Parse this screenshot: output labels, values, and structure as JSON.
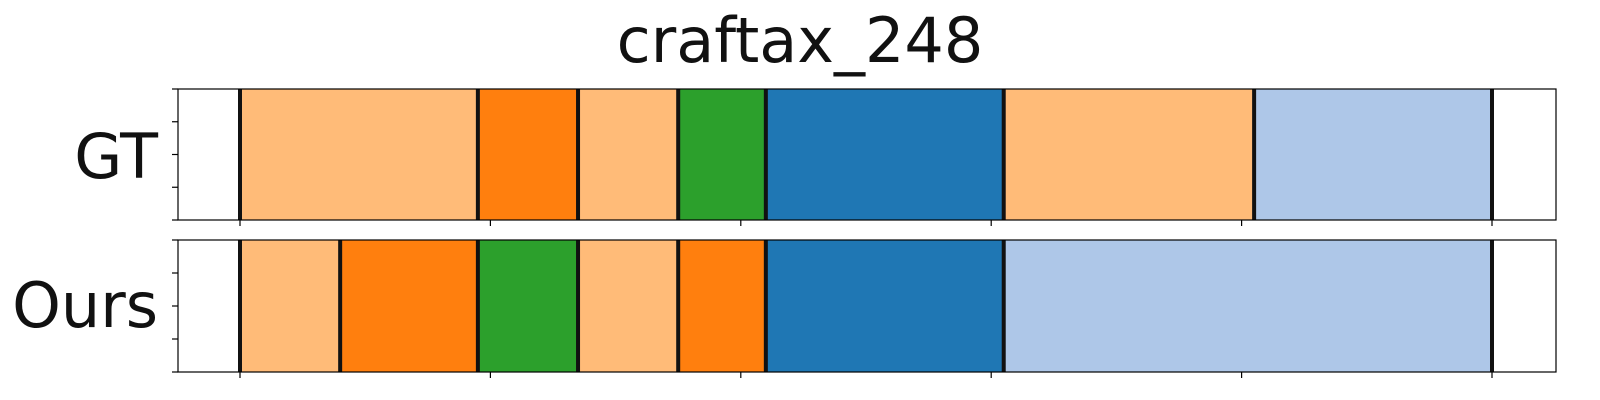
{
  "chart_data": {
    "type": "segmentation-timeline",
    "title": "craftax_248",
    "xlim": [
      0,
      1
    ],
    "colors": {
      "light_orange": "#ffbb78",
      "orange": "#ff7f0e",
      "green": "#2ca02c",
      "blue": "#1f77b4",
      "light_blue": "#aec7e8",
      "boundary": "#111111"
    },
    "rows": [
      {
        "label": "GT",
        "segments": [
          {
            "start": 0.0,
            "end": 0.19,
            "color": "light_orange"
          },
          {
            "start": 0.19,
            "end": 0.27,
            "color": "orange"
          },
          {
            "start": 0.27,
            "end": 0.35,
            "color": "light_orange"
          },
          {
            "start": 0.35,
            "end": 0.42,
            "color": "green"
          },
          {
            "start": 0.42,
            "end": 0.61,
            "color": "blue"
          },
          {
            "start": 0.61,
            "end": 0.81,
            "color": "light_orange"
          },
          {
            "start": 0.81,
            "end": 1.0,
            "color": "light_blue"
          }
        ]
      },
      {
        "label": "Ours",
        "segments": [
          {
            "start": 0.0,
            "end": 0.08,
            "color": "light_orange"
          },
          {
            "start": 0.08,
            "end": 0.19,
            "color": "orange"
          },
          {
            "start": 0.19,
            "end": 0.27,
            "color": "green"
          },
          {
            "start": 0.27,
            "end": 0.35,
            "color": "light_orange"
          },
          {
            "start": 0.35,
            "end": 0.42,
            "color": "orange"
          },
          {
            "start": 0.42,
            "end": 0.61,
            "color": "blue"
          },
          {
            "start": 0.61,
            "end": 1.0,
            "color": "light_blue"
          }
        ]
      }
    ],
    "x_tick_count": 6,
    "y_tick_count": 5,
    "grid": false,
    "legend": "none"
  }
}
